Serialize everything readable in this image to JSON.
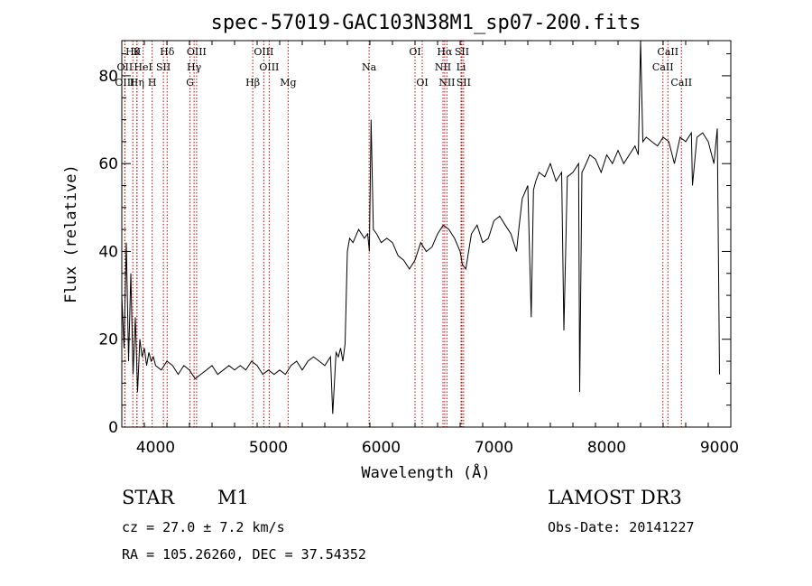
{
  "chart_data": {
    "type": "line",
    "title": "spec-57019-GAC103N38M1_sp07-200.fits",
    "xlabel": "Wavelength (Å)",
    "ylabel": "Flux (relative)",
    "xlim": [
      3700,
      9100
    ],
    "ylim": [
      0,
      88
    ],
    "xticks": [
      4000,
      5000,
      6000,
      7000,
      8000,
      9000
    ],
    "yticks": [
      0,
      20,
      40,
      60,
      80
    ],
    "series": [
      {
        "x": [
          3700,
          3720,
          3740,
          3760,
          3780,
          3800,
          3820,
          3840,
          3860,
          3880,
          3900,
          3920,
          3940,
          3960,
          3980,
          4000,
          4050,
          4100,
          4150,
          4200,
          4250,
          4300,
          4350,
          4400,
          4450,
          4500,
          4550,
          4600,
          4650,
          4700,
          4750,
          4800,
          4850,
          4900,
          4950,
          5000,
          5050,
          5100,
          5150,
          5200,
          5250,
          5300,
          5350,
          5400,
          5450,
          5500,
          5550,
          5570,
          5600,
          5620,
          5640,
          5660,
          5680,
          5700,
          5720,
          5750,
          5800,
          5850,
          5880,
          5895,
          5910,
          5930,
          5960,
          6000,
          6050,
          6100,
          6150,
          6200,
          6250,
          6300,
          6350,
          6400,
          6450,
          6500,
          6550,
          6600,
          6650,
          6700,
          6720,
          6750,
          6800,
          6850,
          6900,
          6950,
          7000,
          7050,
          7100,
          7150,
          7200,
          7220,
          7250,
          7300,
          7330,
          7350,
          7370,
          7400,
          7450,
          7500,
          7550,
          7600,
          7620,
          7650,
          7700,
          7750,
          7760,
          7780,
          7800,
          7850,
          7900,
          7950,
          8000,
          8050,
          8100,
          8150,
          8200,
          8250,
          8280,
          8300,
          8320,
          8350,
          8400,
          8450,
          8500,
          8550,
          8600,
          8650,
          8700,
          8750,
          8760,
          8800,
          8850,
          8900,
          8950,
          8980,
          9000
        ],
        "y": [
          30,
          18,
          42,
          15,
          35,
          12,
          25,
          8,
          20,
          16,
          18,
          14,
          17,
          15,
          16,
          14,
          13,
          15,
          14,
          12,
          14,
          13,
          11,
          12,
          13,
          14,
          12,
          13,
          14,
          13,
          14,
          13,
          15,
          14,
          12,
          13,
          12,
          13,
          12,
          14,
          15,
          13,
          15,
          16,
          15,
          14,
          16,
          3,
          17,
          16,
          18,
          15,
          19,
          40,
          43,
          42,
          45,
          43,
          44,
          40,
          70,
          45,
          44,
          42,
          43,
          42,
          39,
          38,
          36,
          38,
          42,
          40,
          41,
          44,
          46,
          45,
          43,
          40,
          37,
          36,
          44,
          46,
          42,
          43,
          47,
          48,
          46,
          44,
          40,
          45,
          52,
          55,
          25,
          54,
          56,
          58,
          57,
          60,
          56,
          58,
          22,
          57,
          58,
          60,
          8,
          58,
          59,
          62,
          61,
          58,
          62,
          60,
          63,
          60,
          62,
          64,
          62,
          88,
          65,
          66,
          65,
          64,
          66,
          65,
          60,
          66,
          65,
          67,
          55,
          66,
          67,
          65,
          60,
          68,
          12
        ]
      }
    ],
    "lines": [
      {
        "label": "Hθ",
        "x": 3798,
        "row": 0
      },
      {
        "label": "OII",
        "x": 3727,
        "row": 1
      },
      {
        "label": "OIII",
        "x": 3727,
        "row": 2
      },
      {
        "label": "K",
        "x": 3834,
        "row": 0
      },
      {
        "label": "HeI",
        "x": 3889,
        "row": 1
      },
      {
        "label": "Hη",
        "x": 3835,
        "row": 2
      },
      {
        "label": "H",
        "x": 3969,
        "row": 2
      },
      {
        "label": "SII",
        "x": 4069,
        "row": 1
      },
      {
        "label": "Hδ",
        "x": 4102,
        "row": 0
      },
      {
        "label": "OIII",
        "x": 4363,
        "row": 0
      },
      {
        "label": "Hγ",
        "x": 4341,
        "row": 1
      },
      {
        "label": "G",
        "x": 4305,
        "row": 2
      },
      {
        "label": "Hβ",
        "x": 4861,
        "row": 2
      },
      {
        "label": "OIII",
        "x": 4959,
        "row": 0
      },
      {
        "label": "OIII",
        "x": 5007,
        "row": 1
      },
      {
        "label": "Mg",
        "x": 5175,
        "row": 2
      },
      {
        "label": "Na",
        "x": 5893,
        "row": 1
      },
      {
        "label": "OI",
        "x": 6300,
        "row": 0
      },
      {
        "label": "OI",
        "x": 6364,
        "row": 2
      },
      {
        "label": "Hα",
        "x": 6563,
        "row": 0
      },
      {
        "label": "NII",
        "x": 6548,
        "row": 1
      },
      {
        "label": "NII",
        "x": 6583,
        "row": 2
      },
      {
        "label": "SII",
        "x": 6716,
        "row": 0
      },
      {
        "label": "Li",
        "x": 6708,
        "row": 1
      },
      {
        "label": "SII",
        "x": 6731,
        "row": 2
      },
      {
        "label": "CaII",
        "x": 8542,
        "row": 0
      },
      {
        "label": "CaII",
        "x": 8498,
        "row": 1
      },
      {
        "label": "CaII",
        "x": 8662,
        "row": 2
      }
    ],
    "line_color": "#cc0000",
    "series_color": "#000000"
  },
  "info": {
    "class": "STAR",
    "subclass": "M1",
    "survey": "LAMOST DR3",
    "cz": "cz = 27.0 ± 7.2 km/s",
    "obsdate": "Obs-Date: 20141227",
    "radec": "RA = 105.26260, DEC =  37.54352"
  }
}
